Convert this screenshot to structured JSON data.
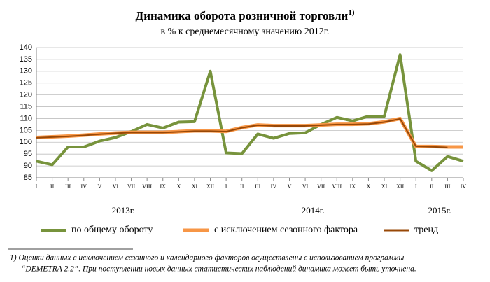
{
  "chart_data": {
    "type": "line",
    "title": "Динамика оборота розничной торговли",
    "title_note": "1)",
    "subtitle": "в % к среднемесячному значению 2012г.",
    "categories": [
      "I",
      "II",
      "III",
      "IV",
      "V",
      "VI",
      "VII",
      "VIII",
      "IX",
      "X",
      "XI",
      "XII",
      "I",
      "II",
      "III",
      "IV",
      "V",
      "VI",
      "VII",
      "VIII",
      "IX",
      "X",
      "XI",
      "XII",
      "I",
      "II",
      "III",
      "IV"
    ],
    "years": [
      "2013г.",
      "2014г.",
      "2015г."
    ],
    "series": [
      {
        "name": "по общему обороту",
        "color": "#77933c",
        "width": 4,
        "values": [
          92,
          90.5,
          98,
          98,
          100.5,
          102,
          104.5,
          107.5,
          106,
          108.5,
          108.7,
          130,
          95.5,
          95.2,
          103.5,
          101.7,
          103.7,
          104,
          107.5,
          110.5,
          109,
          111,
          111,
          137,
          92,
          88,
          94,
          92
        ]
      },
      {
        "name": "с исключением  сезонного фактора",
        "color": "#f79646",
        "width": 5,
        "values": [
          102,
          102.3,
          102.6,
          103,
          103.5,
          103.9,
          104.2,
          104.2,
          104.2,
          104.5,
          104.8,
          104.8,
          104.6,
          106.2,
          107.3,
          107,
          107,
          107,
          107.3,
          107.6,
          107.6,
          107.8,
          108.6,
          110,
          98.2,
          98.2,
          98,
          98
        ]
      },
      {
        "name": "тренд",
        "color": "#984807",
        "width": 2,
        "values": [
          101.9,
          102.2,
          102.5,
          102.9,
          103.4,
          103.8,
          104.1,
          104.1,
          104.1,
          104.4,
          104.7,
          104.7,
          104.5,
          106.1,
          107.2,
          106.9,
          106.9,
          106.9,
          107.2,
          107.5,
          107.5,
          107.7,
          108.5,
          109.9,
          98.3,
          98.1,
          97.8,
          null
        ]
      }
    ],
    "ylim": [
      85,
      140
    ],
    "yticks": [
      85,
      90,
      95,
      100,
      105,
      110,
      115,
      120,
      125,
      130,
      135,
      140
    ],
    "grid": true,
    "legend": "bottom",
    "footnote": [
      "1) Оценки данных с исключением сезонного и календарного факторов осуществлены с использованием  программы",
      "“DEMETRA 2.2”. При поступлении новых данных статистических наблюдений динамика может быть уточнена."
    ]
  }
}
